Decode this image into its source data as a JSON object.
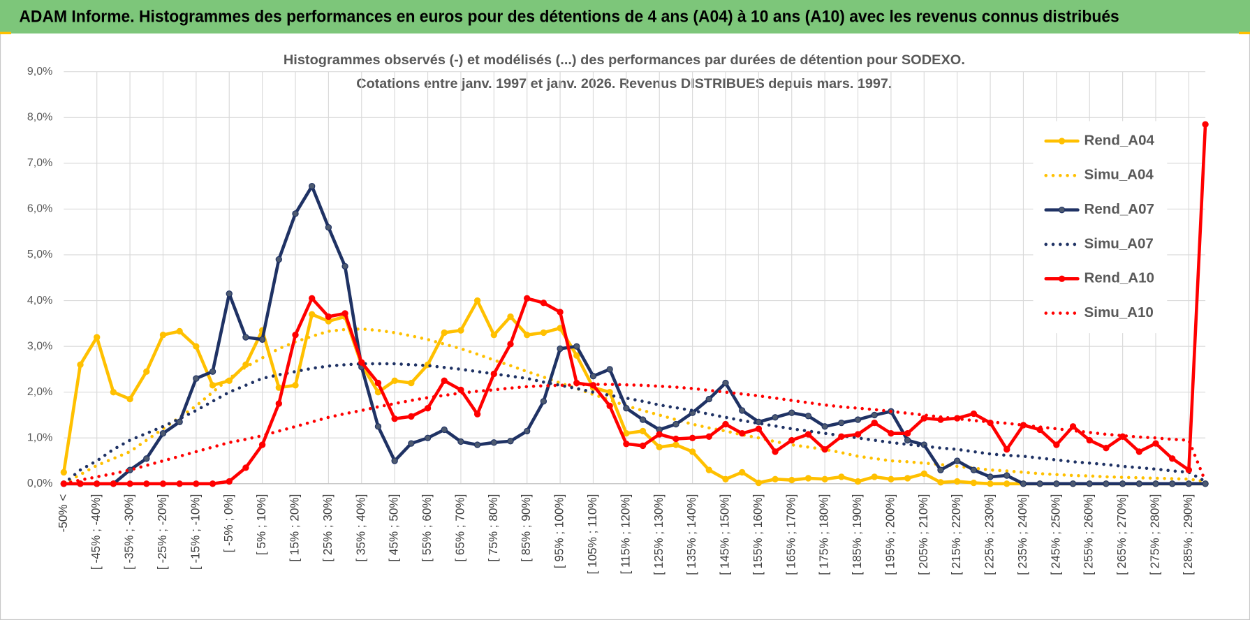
{
  "header": {
    "title": "ADAM Informe. Histogrammes des performances en euros pour des détentions de 4 ans (A04) à 10 ans (A10) avec les revenus connus distribués"
  },
  "chart_data": {
    "type": "line",
    "title": "Histogrammes observés (-) et modélisés (...) des performances par durées de détention pour SODEXO.",
    "subtitle": "Cotations entre janv. 1997 et janv. 2026. Revenus DISTRIBUES depuis mars. 1997.",
    "categories": [
      "-50% <",
      null,
      "[ -45% ; -40%]",
      null,
      "[ -35% ; -30%]",
      null,
      "[ -25% ; -20%]",
      null,
      "[ -15% ; -10%]",
      null,
      "[ -5% ; 0%]",
      null,
      "[ 5% ; 10%]",
      null,
      "[ 15% ; 20%]",
      null,
      "[ 25% ; 30%]",
      null,
      "[ 35% ; 40%]",
      null,
      "[ 45% ; 50%]",
      null,
      "[ 55% ; 60%]",
      null,
      "[ 65% ; 70%]",
      null,
      "[ 75% ; 80%]",
      null,
      "[ 85% ; 90%]",
      null,
      "[ 95% ; 100%]",
      null,
      "[ 105% ; 110%]",
      null,
      "[ 115% ; 120%]",
      null,
      "[ 125% ; 130%]",
      null,
      "[ 135% ; 140%]",
      null,
      "[ 145% ; 150%]",
      null,
      "[ 155% ; 160%]",
      null,
      "[ 165% ; 170%]",
      null,
      "[ 175% ; 180%]",
      null,
      "[ 185% ; 190%]",
      null,
      "[ 195% ; 200%]",
      null,
      "[ 205% ; 210%]",
      null,
      "[ 215% ; 220%]",
      null,
      "[ 225% ; 230%]",
      null,
      "[ 235% ; 240%]",
      null,
      "[ 245% ; 250%]",
      null,
      "[ 255% ; 260%]",
      null,
      "[ 265% ; 270%]",
      null,
      "[ 275% ; 280%]",
      null,
      "[ 285% ; 290%]",
      null
    ],
    "series": [
      {
        "name": "Rend_A04",
        "color": "#ffc000",
        "style": "solid",
        "markers": true,
        "values": [
          0.25,
          2.6,
          3.2,
          2.0,
          1.85,
          2.45,
          3.25,
          3.33,
          3.0,
          2.15,
          2.25,
          2.6,
          3.35,
          2.1,
          2.15,
          3.7,
          3.55,
          3.65,
          2.6,
          2.0,
          2.25,
          2.2,
          2.6,
          3.3,
          3.35,
          4.0,
          3.25,
          3.65,
          3.25,
          3.3,
          3.4,
          2.8,
          2.1,
          2.0,
          1.1,
          1.15,
          0.8,
          0.85,
          0.7,
          0.3,
          0.1,
          0.25,
          0.02,
          0.1,
          0.08,
          0.12,
          0.1,
          0.15,
          0.05,
          0.15,
          0.1,
          0.12,
          0.22,
          0.03,
          0.05,
          0.02,
          0,
          0,
          0,
          0,
          0,
          0,
          0,
          0,
          0,
          0,
          0,
          0,
          0,
          0
        ]
      },
      {
        "name": "Simu_A04",
        "color": "#ffc000",
        "style": "dotted",
        "markers": false,
        "values": [
          0,
          0.2,
          0.4,
          0.55,
          0.7,
          0.95,
          1.2,
          1.45,
          1.7,
          2.0,
          2.3,
          2.55,
          2.75,
          2.95,
          3.1,
          3.22,
          3.33,
          3.37,
          3.38,
          3.35,
          3.3,
          3.23,
          3.15,
          3.05,
          2.95,
          2.83,
          2.7,
          2.58,
          2.45,
          2.33,
          2.2,
          2.08,
          1.95,
          1.83,
          1.7,
          1.6,
          1.5,
          1.4,
          1.3,
          1.22,
          1.15,
          1.07,
          1.0,
          0.92,
          0.85,
          0.8,
          0.75,
          0.68,
          0.6,
          0.55,
          0.5,
          0.48,
          0.45,
          0.42,
          0.38,
          0.34,
          0.3,
          0.28,
          0.25,
          0.22,
          0.2,
          0.18,
          0.17,
          0.15,
          0.14,
          0.13,
          0.12,
          0.11,
          0.1,
          0.05
        ]
      },
      {
        "name": "Rend_A07",
        "color": "#1f3264",
        "style": "solid",
        "markers": true,
        "values": [
          0,
          0,
          0,
          0,
          0.3,
          0.55,
          1.1,
          1.35,
          2.3,
          2.45,
          4.15,
          3.2,
          3.15,
          4.9,
          5.9,
          6.5,
          5.6,
          4.75,
          2.55,
          1.25,
          0.5,
          0.88,
          1.0,
          1.18,
          0.92,
          0.85,
          0.9,
          0.93,
          1.15,
          1.8,
          2.95,
          3.0,
          2.35,
          2.5,
          1.65,
          1.4,
          1.18,
          1.3,
          1.55,
          1.85,
          2.2,
          1.6,
          1.35,
          1.45,
          1.55,
          1.48,
          1.25,
          1.33,
          1.4,
          1.5,
          1.58,
          0.95,
          0.85,
          0.3,
          0.5,
          0.3,
          0.15,
          0.18,
          0,
          0,
          0,
          0,
          0,
          0,
          0,
          0,
          0,
          0,
          0,
          0
        ]
      },
      {
        "name": "Simu_A07",
        "color": "#1f3264",
        "style": "dotted",
        "markers": false,
        "values": [
          0,
          0.3,
          0.5,
          0.75,
          0.95,
          1.1,
          1.25,
          1.42,
          1.6,
          1.8,
          2.0,
          2.15,
          2.3,
          2.38,
          2.45,
          2.52,
          2.57,
          2.6,
          2.62,
          2.62,
          2.62,
          2.6,
          2.58,
          2.54,
          2.5,
          2.45,
          2.4,
          2.35,
          2.3,
          2.22,
          2.15,
          2.08,
          2.0,
          1.93,
          1.87,
          1.8,
          1.72,
          1.66,
          1.6,
          1.52,
          1.45,
          1.38,
          1.32,
          1.26,
          1.2,
          1.15,
          1.1,
          1.05,
          1.0,
          0.95,
          0.9,
          0.86,
          0.82,
          0.78,
          0.75,
          0.7,
          0.65,
          0.62,
          0.6,
          0.56,
          0.52,
          0.48,
          0.45,
          0.42,
          0.38,
          0.35,
          0.32,
          0.28,
          0.25,
          0.05
        ]
      },
      {
        "name": "Rend_A10",
        "color": "#ff0000",
        "style": "solid",
        "markers": true,
        "values": [
          0,
          0,
          0,
          0,
          0,
          0,
          0,
          0,
          0,
          0,
          0.05,
          0.35,
          0.85,
          1.75,
          3.25,
          4.05,
          3.65,
          3.72,
          2.65,
          2.2,
          1.42,
          1.47,
          1.65,
          2.25,
          2.05,
          1.52,
          2.4,
          3.05,
          4.05,
          3.95,
          3.75,
          2.2,
          2.15,
          1.7,
          0.87,
          0.83,
          1.08,
          0.98,
          1.0,
          1.03,
          1.3,
          1.1,
          1.2,
          0.7,
          0.95,
          1.08,
          0.75,
          1.03,
          1.08,
          1.33,
          1.1,
          1.1,
          1.43,
          1.4,
          1.43,
          1.53,
          1.33,
          0.75,
          1.28,
          1.18,
          0.85,
          1.25,
          0.95,
          0.78,
          1.03,
          0.7,
          0.88,
          0.55,
          0.3,
          7.85
        ]
      },
      {
        "name": "Simu_A10",
        "color": "#ff0000",
        "style": "dotted",
        "markers": false,
        "values": [
          0,
          0.08,
          0.15,
          0.22,
          0.3,
          0.4,
          0.5,
          0.6,
          0.7,
          0.8,
          0.9,
          0.97,
          1.05,
          1.15,
          1.25,
          1.35,
          1.45,
          1.53,
          1.6,
          1.68,
          1.75,
          1.82,
          1.88,
          1.93,
          1.98,
          2.02,
          2.05,
          2.09,
          2.12,
          2.14,
          2.15,
          2.16,
          2.17,
          2.17,
          2.16,
          2.15,
          2.13,
          2.11,
          2.08,
          2.04,
          2.0,
          1.96,
          1.92,
          1.87,
          1.82,
          1.77,
          1.72,
          1.68,
          1.65,
          1.62,
          1.58,
          1.54,
          1.5,
          1.46,
          1.42,
          1.38,
          1.35,
          1.32,
          1.28,
          1.24,
          1.2,
          1.16,
          1.12,
          1.08,
          1.05,
          1.02,
          1.0,
          0.97,
          0.95,
          0.05
        ]
      }
    ],
    "ylim": [
      0,
      9
    ],
    "yticks": [
      {
        "value": 0,
        "label": "0,0%"
      },
      {
        "value": 1,
        "label": "1,0%"
      },
      {
        "value": 2,
        "label": "2,0%"
      },
      {
        "value": 3,
        "label": "3,0%"
      },
      {
        "value": 4,
        "label": "4,0%"
      },
      {
        "value": 5,
        "label": "5,0%"
      },
      {
        "value": 6,
        "label": "6,0%"
      },
      {
        "value": 7,
        "label": "7,0%"
      },
      {
        "value": 8,
        "label": "8,0%"
      },
      {
        "value": 9,
        "label": "9,0%"
      }
    ],
    "grid": true,
    "legend": "right"
  }
}
